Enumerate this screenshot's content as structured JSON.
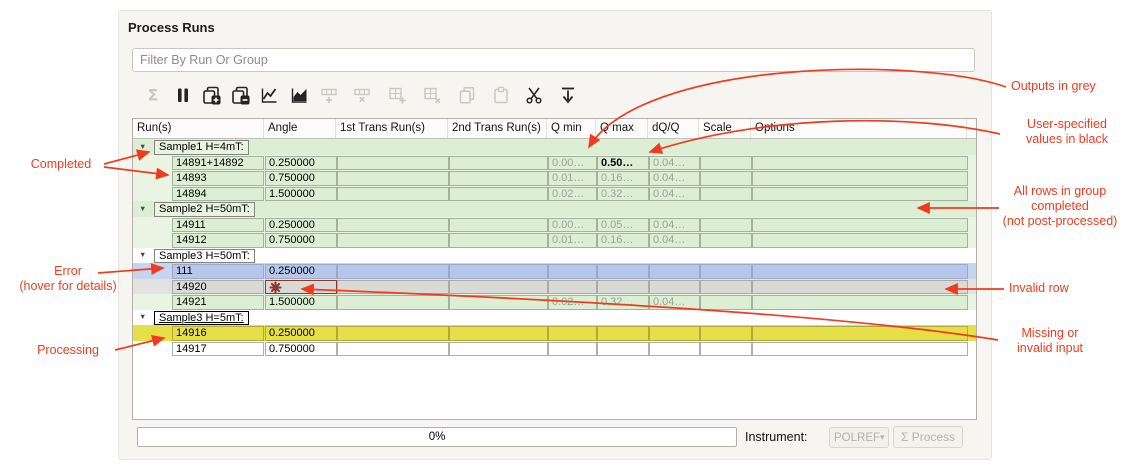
{
  "panel": {
    "title": "Process Runs"
  },
  "filter": {
    "placeholder": "Filter By Run Or Group"
  },
  "toolbar": {
    "icons": [
      {
        "name": "process-sigma",
        "enabled": false
      },
      {
        "name": "pause",
        "enabled": true
      },
      {
        "name": "insert-group",
        "enabled": true
      },
      {
        "name": "delete-group",
        "enabled": true
      },
      {
        "name": "plot-runs",
        "enabled": true
      },
      {
        "name": "plot-stitched",
        "enabled": true
      },
      {
        "name": "insert-row",
        "enabled": false
      },
      {
        "name": "delete-row",
        "enabled": false
      },
      {
        "name": "add-to-table",
        "enabled": false
      },
      {
        "name": "remove-from-table",
        "enabled": false
      },
      {
        "name": "copy",
        "enabled": false
      },
      {
        "name": "paste",
        "enabled": false
      },
      {
        "name": "cut",
        "enabled": true
      },
      {
        "name": "collapse-all",
        "enabled": true
      }
    ]
  },
  "table": {
    "columns": [
      "Run(s)",
      "Angle",
      "1st Trans Run(s)",
      "2nd Trans Run(s)",
      "Q min",
      "Q max",
      "dQ/Q",
      "Scale",
      "Options"
    ],
    "groups": [
      {
        "label": "Sample1 H=4mT:",
        "state": "completed",
        "focused": false,
        "rows": [
          {
            "state": "completed",
            "cells": [
              "14891+14892",
              "0.250000",
              "",
              "",
              {
                "text": "0.00…",
                "tone": "grey"
              },
              {
                "text": "0.50…",
                "tone": "black"
              },
              {
                "text": "0.04…",
                "tone": "grey"
              },
              "",
              ""
            ]
          },
          {
            "state": "completed",
            "cells": [
              "14893",
              "0.750000",
              "",
              "",
              {
                "text": "0.01…",
                "tone": "grey"
              },
              {
                "text": "0.16…",
                "tone": "grey"
              },
              {
                "text": "0.04…",
                "tone": "grey"
              },
              "",
              ""
            ]
          },
          {
            "state": "completed",
            "cells": [
              "14894",
              "1.500000",
              "",
              "",
              {
                "text": "0.02…",
                "tone": "grey"
              },
              {
                "text": "0.32…",
                "tone": "grey"
              },
              {
                "text": "0.04…",
                "tone": "grey"
              },
              "",
              ""
            ]
          }
        ]
      },
      {
        "label": "Sample2 H=50mT:",
        "state": "completed",
        "focused": false,
        "rows": [
          {
            "state": "completed",
            "cells": [
              "14911",
              "0.250000",
              "",
              "",
              {
                "text": "0.00…",
                "tone": "grey"
              },
              {
                "text": "0.05…",
                "tone": "grey"
              },
              {
                "text": "0.04…",
                "tone": "grey"
              },
              "",
              ""
            ]
          },
          {
            "state": "completed",
            "cells": [
              "14912",
              "0.750000",
              "",
              "",
              {
                "text": "0.01…",
                "tone": "grey"
              },
              {
                "text": "0.16…",
                "tone": "grey"
              },
              {
                "text": "0.04…",
                "tone": "grey"
              },
              "",
              ""
            ]
          }
        ]
      },
      {
        "label": "Sample3 H=50mT:",
        "state": "default",
        "focused": false,
        "rows": [
          {
            "state": "error",
            "cells": [
              "111",
              "0.250000",
              "",
              "",
              "",
              "",
              "",
              "",
              ""
            ]
          },
          {
            "state": "invalid",
            "cells": [
              "14920",
              {
                "icon": "star"
              },
              "",
              "",
              "",
              "",
              "",
              "",
              ""
            ]
          },
          {
            "state": "completed",
            "cells": [
              "14921",
              "1.500000",
              "",
              "",
              {
                "text": "0.02…",
                "tone": "grey"
              },
              {
                "text": "0.32…",
                "tone": "grey"
              },
              {
                "text": "0.04…",
                "tone": "grey"
              },
              "",
              ""
            ]
          }
        ]
      },
      {
        "label": "Sample3 H=5mT:",
        "state": "default",
        "focused": true,
        "rows": [
          {
            "state": "processing",
            "cells": [
              "14916",
              "0.250000",
              "",
              "",
              "",
              "",
              "",
              "",
              ""
            ]
          },
          {
            "state": "default",
            "cells": [
              "14917",
              "0.750000",
              "",
              "",
              "",
              "",
              "",
              "",
              ""
            ]
          }
        ]
      }
    ]
  },
  "footer": {
    "progress": "0%",
    "instrument_label": "Instrument:",
    "instrument_value": "POLREF",
    "process_button": "Σ Process"
  },
  "annotations": {
    "completed": "Completed",
    "error": "Error\n(hover for details)",
    "processing": "Processing",
    "outputs_grey": "Outputs in grey",
    "user_specified": "User-specified\nvalues in black",
    "all_rows": "All rows in group\ncompleted\n(not post-processed)",
    "invalid_row": "Invalid row",
    "missing_input": "Missing or\ninvalid input"
  },
  "colors": {
    "annotation_red": "#f23b1e",
    "completed_green": "#dcefd5",
    "error_blue": "#b5c7ea",
    "invalid_grey": "#d9d9d7",
    "processing_yellow": "#e6df48",
    "invalid_marker": "#8c3a2b"
  }
}
